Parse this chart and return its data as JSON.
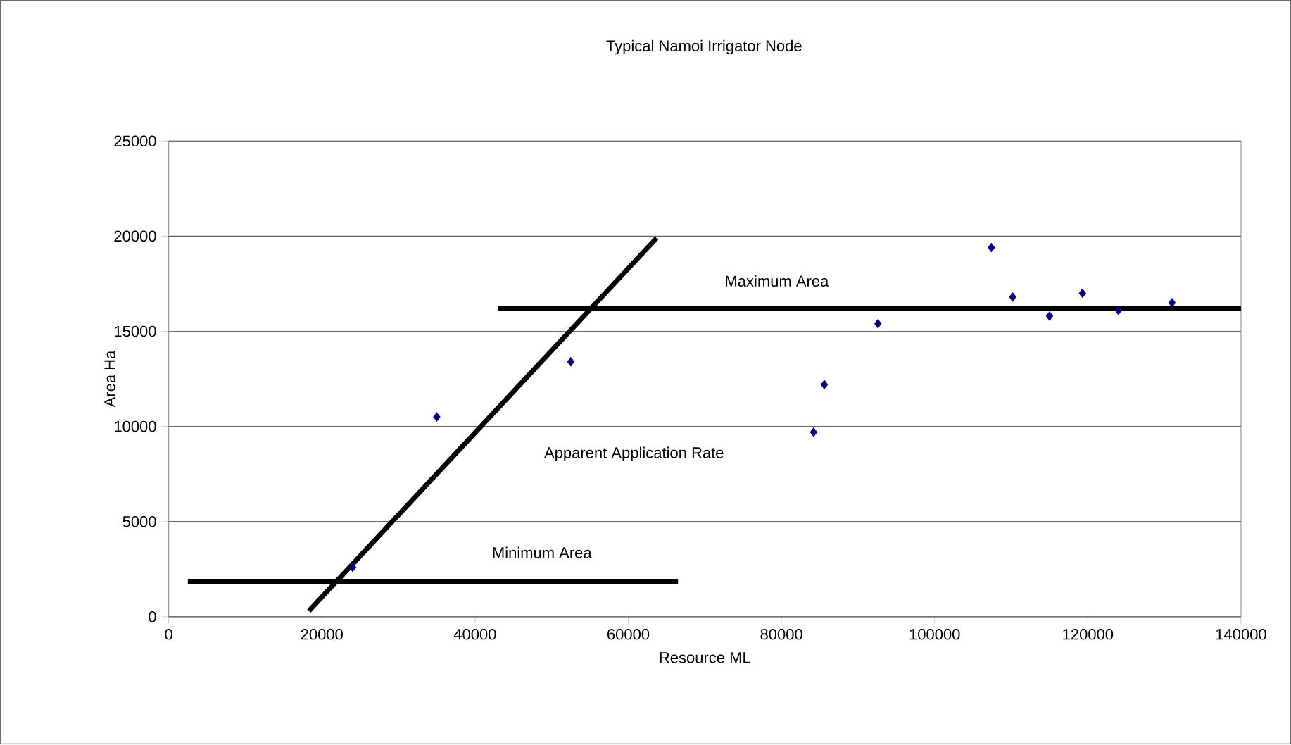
{
  "chart_data": {
    "type": "scatter",
    "title": "Typical Namoi Irrigator Node",
    "xlabel": "Resource ML",
    "ylabel": "Area Ha",
    "xlim": [
      0,
      140000
    ],
    "ylim": [
      0,
      25000
    ],
    "xticks": [
      0,
      20000,
      40000,
      60000,
      80000,
      100000,
      120000,
      140000
    ],
    "yticks": [
      0,
      5000,
      10000,
      15000,
      20000,
      25000
    ],
    "grid": "y",
    "series": [
      {
        "color": "#000080",
        "marker": "diamond",
        "x": [
          24000,
          35000,
          52500,
          84200,
          85600,
          92600,
          107400,
          110200,
          115000,
          119300,
          124000,
          131000
        ],
        "values": [
          2600,
          10500,
          13400,
          9700,
          12200,
          15400,
          19400,
          16800,
          15800,
          17000,
          16100,
          16500
        ]
      },
      {
        "type": "line",
        "color": "#000000",
        "x": [
          43000,
          140000
        ],
        "values": [
          16200,
          16200
        ]
      },
      {
        "type": "line",
        "color": "#000000",
        "x": [
          18300,
          63700
        ],
        "values": [
          300,
          19900
        ]
      },
      {
        "type": "line",
        "color": "#000000",
        "x": [
          2500,
          66500
        ],
        "values": [
          1860,
          1860
        ]
      }
    ],
    "annotations": [
      "Maximum Area",
      "Apparent Application Rate",
      "Minimum Area"
    ]
  }
}
